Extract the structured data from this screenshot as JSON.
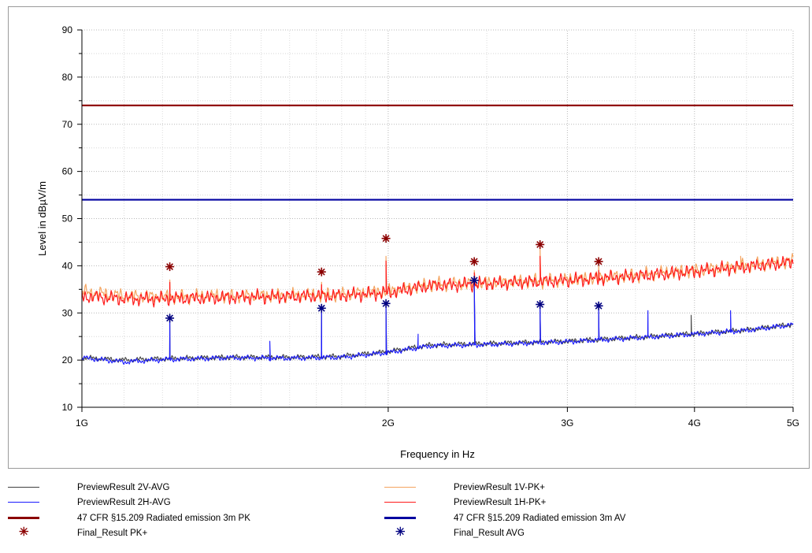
{
  "chart_data": {
    "type": "line",
    "xlabel": "Frequency in Hz",
    "ylabel": "Level in dBµV/m",
    "x_scale": "log",
    "xlim_hz": [
      1000000000,
      5000000000
    ],
    "ylim": [
      10,
      90
    ],
    "y_ticks": [
      10,
      20,
      30,
      40,
      50,
      60,
      70,
      80,
      90
    ],
    "x_ticks": [
      {
        "value": 1000000000,
        "label": "1G"
      },
      {
        "value": 2000000000,
        "label": "2G"
      },
      {
        "value": 3000000000,
        "label": "3G"
      },
      {
        "value": 4000000000,
        "label": "4G"
      },
      {
        "value": 5000000000,
        "label": "5G"
      }
    ],
    "grid": true,
    "legend_position": "bottom",
    "limits": [
      {
        "name": "47 CFR §15.209 Radiated emission 3m PK",
        "value": 74,
        "color": "#8b0000"
      },
      {
        "name": "47 CFR §15.209 Radiated emission 3m AV",
        "value": 54,
        "color": "#0000a0"
      }
    ],
    "series": [
      {
        "name": "PreviewResult 1V-PK+",
        "color": "#f4a460",
        "kind": "trace",
        "baseline_x": [
          1000000000.0,
          1100000000.0,
          1200000000.0,
          1400000000.0,
          1600000000.0,
          1800000000.0,
          2000000000.0,
          2200000000.0,
          2500000000.0,
          3000000000.0,
          3500000000.0,
          4000000000.0,
          4500000000.0,
          5000000000.0
        ],
        "baseline_y": [
          34.5,
          33.6,
          33.4,
          33.6,
          33.7,
          33.9,
          34.6,
          36.0,
          36.4,
          37.0,
          38.0,
          39.0,
          40.0,
          41.0
        ],
        "peaks": [
          [
            1220000000.0,
            37.0
          ],
          [
            1720000000.0,
            36.5
          ],
          [
            1990000000.0,
            42.0
          ],
          [
            2430000000.0,
            39.0
          ],
          [
            2820000000.0,
            44.0
          ],
          [
            3220000000.0,
            40.0
          ],
          [
            4440000000.0,
            42.0
          ]
        ]
      },
      {
        "name": "PreviewResult 1H-PK+",
        "color": "#ff1a1a",
        "kind": "trace",
        "baseline_x": [
          1000000000.0,
          1100000000.0,
          1200000000.0,
          1400000000.0,
          1600000000.0,
          1800000000.0,
          2000000000.0,
          2200000000.0,
          2500000000.0,
          3000000000.0,
          3500000000.0,
          4000000000.0,
          4500000000.0,
          5000000000.0
        ],
        "baseline_y": [
          33.5,
          33.0,
          33.0,
          33.3,
          33.5,
          33.7,
          34.3,
          35.8,
          36.2,
          36.9,
          37.8,
          38.8,
          39.8,
          40.8
        ],
        "peaks": [
          [
            1220000000.0,
            36.5
          ],
          [
            1720000000.0,
            36.0
          ],
          [
            1990000000.0,
            41.0
          ],
          [
            2430000000.0,
            38.5
          ],
          [
            2820000000.0,
            42.0
          ],
          [
            3220000000.0,
            39.0
          ]
        ]
      },
      {
        "name": "PreviewResult 2V-AVG",
        "color": "#404040",
        "kind": "trace",
        "baseline_x": [
          1000000000.0,
          1100000000.0,
          1200000000.0,
          1400000000.0,
          1600000000.0,
          1800000000.0,
          2000000000.0,
          2200000000.0,
          2500000000.0,
          3000000000.0,
          3500000000.0,
          4000000000.0,
          4500000000.0,
          5000000000.0
        ],
        "baseline_y": [
          20.5,
          20.0,
          20.3,
          20.6,
          20.6,
          20.8,
          21.8,
          23.2,
          23.5,
          24.0,
          24.8,
          25.6,
          26.4,
          27.6
        ],
        "peaks": [
          [
            1220000000.0,
            28.0
          ],
          [
            1720000000.0,
            30.0
          ],
          [
            1990000000.0,
            31.0
          ],
          [
            2430000000.0,
            36.0
          ],
          [
            2820000000.0,
            31.0
          ],
          [
            3220000000.0,
            30.5
          ],
          [
            3970000000.0,
            29.5
          ]
        ]
      },
      {
        "name": "PreviewResult 2H-AVG",
        "color": "#1a1aff",
        "kind": "trace",
        "baseline_x": [
          1000000000.0,
          1100000000.0,
          1200000000.0,
          1400000000.0,
          1600000000.0,
          1800000000.0,
          2000000000.0,
          2200000000.0,
          2500000000.0,
          3000000000.0,
          3500000000.0,
          4000000000.0,
          4500000000.0,
          5000000000.0
        ],
        "baseline_y": [
          20.5,
          19.6,
          20.1,
          20.5,
          20.4,
          20.6,
          21.6,
          23.0,
          23.3,
          23.9,
          24.7,
          25.5,
          26.3,
          27.5
        ],
        "peaks": [
          [
            1220000000.0,
            28.5
          ],
          [
            1530000000.0,
            24.0
          ],
          [
            1720000000.0,
            30.5
          ],
          [
            1990000000.0,
            31.5
          ],
          [
            2140000000.0,
            25.5
          ],
          [
            2430000000.0,
            36.5
          ],
          [
            2820000000.0,
            31.5
          ],
          [
            3220000000.0,
            31.0
          ],
          [
            3600000000.0,
            30.5
          ],
          [
            4340000000.0,
            30.5
          ]
        ]
      },
      {
        "name": "Final_Result PK+",
        "color": "#8b0000",
        "kind": "marker",
        "x": [
          1220000000.0,
          1720000000.0,
          1990000000.0,
          2430000000.0,
          2820000000.0,
          3220000000.0
        ],
        "y": [
          39.8,
          38.7,
          45.8,
          40.9,
          44.5,
          40.9
        ]
      },
      {
        "name": "Final_Result AVG",
        "color": "#000080",
        "kind": "marker",
        "x": [
          1220000000.0,
          1720000000.0,
          1990000000.0,
          2430000000.0,
          2820000000.0,
          3220000000.0
        ],
        "y": [
          28.9,
          31.0,
          32.0,
          36.9,
          31.8,
          31.5
        ]
      }
    ]
  },
  "legend": [
    {
      "label": "PreviewResult 2V-AVG",
      "color": "#404040",
      "style": "thin"
    },
    {
      "label": "PreviewResult 1V-PK+",
      "color": "#f4a460",
      "style": "thin"
    },
    {
      "label": "PreviewResult 2H-AVG",
      "color": "#1a1aff",
      "style": "thin"
    },
    {
      "label": "PreviewResult 1H-PK+",
      "color": "#ff1a1a",
      "style": "thin"
    },
    {
      "label": "47 CFR §15.209 Radiated emission 3m PK",
      "color": "#8b0000",
      "style": "thick"
    },
    {
      "label": "47 CFR §15.209 Radiated emission 3m AV",
      "color": "#0000a0",
      "style": "thick"
    },
    {
      "label": "Final_Result PK+",
      "color": "#8b0000",
      "style": "star"
    },
    {
      "label": "Final_Result AVG",
      "color": "#000080",
      "style": "star"
    }
  ],
  "legend_star_glyph": "✳"
}
